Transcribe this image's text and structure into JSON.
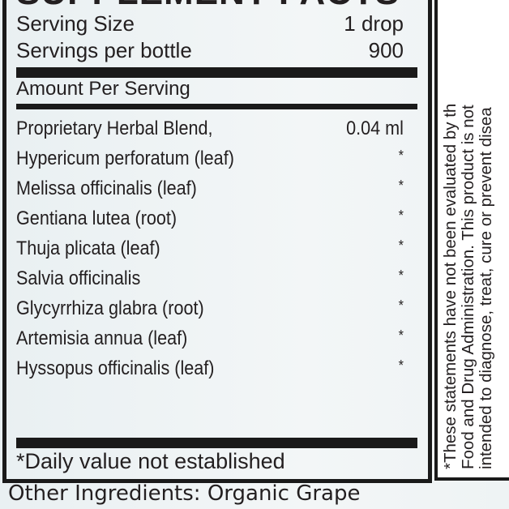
{
  "title": "SUPPLEMENT FACTS",
  "serving": {
    "size_label": "Serving Size",
    "size_value": "1 drop",
    "per_label": "Servings per bottle",
    "per_value": "900"
  },
  "amount_header": "Amount Per Serving",
  "ingredients": [
    {
      "name": "Proprietary Herbal Blend,",
      "amount": "0.04 ml"
    },
    {
      "name": "Hypericum perforatum (leaf)",
      "amount": "*"
    },
    {
      "name": "Melissa officinalis (leaf)",
      "amount": "*"
    },
    {
      "name": "Gentiana lutea (root)",
      "amount": "*"
    },
    {
      "name": "Thuja plicata (leaf)",
      "amount": "*"
    },
    {
      "name": "Salvia officinalis",
      "amount": "*"
    },
    {
      "name": "Glycyrrhiza glabra (root)",
      "amount": "*"
    },
    {
      "name": "Artemisia annua (leaf)",
      "amount": "*"
    },
    {
      "name": "Hyssopus officinalis (leaf)",
      "amount": "*"
    }
  ],
  "footnote": "*Daily value not established",
  "disclaimer": [
    "*These statements have not been evaluated by th",
    "Food and Drug Administration. This product is not",
    "intended to diagnose, treat, cure or prevent disea"
  ],
  "other_ingredients": "Other Ingredients: Organic Grape"
}
